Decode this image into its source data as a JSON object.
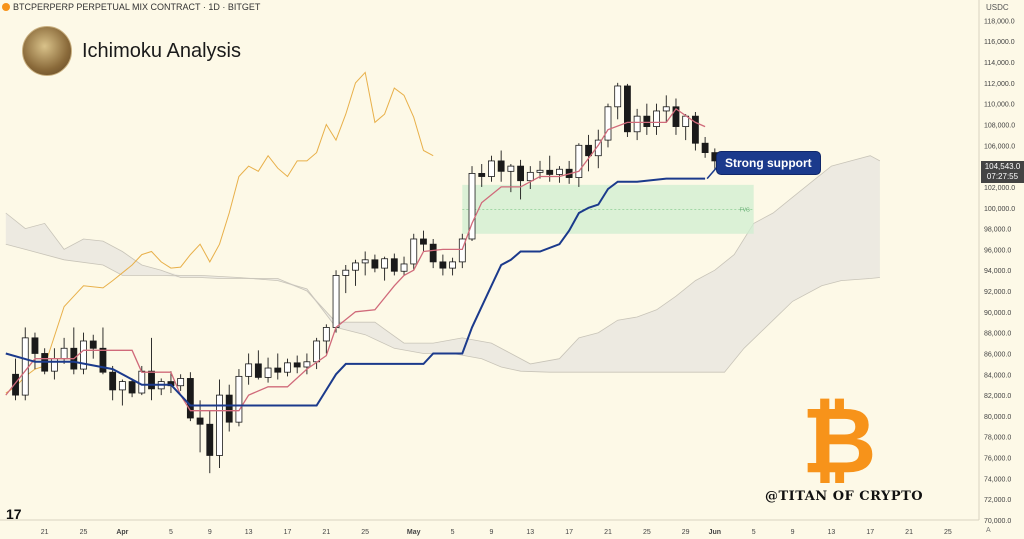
{
  "header": {
    "symbol_line": "BTCPERPERP PERPETUAL MIX CONTRACT · 1D · BITGET"
  },
  "brand": {
    "title": "Ichimoku Analysis"
  },
  "currency": "USDC",
  "annotation": {
    "label": "Strong support",
    "fvg_label": "FVG"
  },
  "price_tag": {
    "price": "104,543.0",
    "countdown": "07:27:55"
  },
  "watermark": "@TITAN OF CRYPTO",
  "logo_text": "17",
  "axis_corner": "A",
  "colors": {
    "background": "#fdf9e7",
    "kijun": "#1b3a8c",
    "tenkan": "#d06a7a",
    "chikou": "#e8b04a",
    "cloud": "#ebe8e0",
    "fvg": "#cfeed0",
    "bitcoin": "#f7931a"
  },
  "chart_data": {
    "type": "candlestick",
    "ylim": [
      70000,
      119000
    ],
    "y_ticks": [
      "118,000.0",
      "116,000.0",
      "114,000.0",
      "112,000.0",
      "110,000.0",
      "108,000.0",
      "106,000.0",
      "104,000.0",
      "102,000.0",
      "100,000.0",
      "98,000.0",
      "96,000.0",
      "94,000.0",
      "92,000.0",
      "90,000.0",
      "88,000.0",
      "86,000.0",
      "84,000.0",
      "82,000.0",
      "80,000.0",
      "78,000.0",
      "76,000.0",
      "74,000.0",
      "72,000.0",
      "70,000.0"
    ],
    "x_ticks": [
      {
        "label": "21",
        "day": -24
      },
      {
        "label": "25",
        "day": -20
      },
      {
        "label": "Apr",
        "day": -16
      },
      {
        "label": "5",
        "day": -11
      },
      {
        "label": "9",
        "day": -7
      },
      {
        "label": "13",
        "day": -3
      },
      {
        "label": "17",
        "day": 1
      },
      {
        "label": "21",
        "day": 5
      },
      {
        "label": "25",
        "day": 9
      },
      {
        "label": "May",
        "day": 14
      },
      {
        "label": "5",
        "day": 18
      },
      {
        "label": "9",
        "day": 22
      },
      {
        "label": "13",
        "day": 26
      },
      {
        "label": "17",
        "day": 30
      },
      {
        "label": "21",
        "day": 34
      },
      {
        "label": "25",
        "day": 38
      },
      {
        "label": "29",
        "day": 42
      },
      {
        "label": "Jun",
        "day": 45
      },
      {
        "label": "5",
        "day": 49
      },
      {
        "label": "9",
        "day": 53
      },
      {
        "label": "13",
        "day": 57
      },
      {
        "label": "17",
        "day": 61
      },
      {
        "label": "21",
        "day": 65
      },
      {
        "label": "25",
        "day": 69
      }
    ],
    "candles": [
      {
        "day": -27,
        "o": 84000,
        "h": 85500,
        "l": 81500,
        "c": 82000
      },
      {
        "day": -26,
        "o": 82000,
        "h": 88500,
        "l": 81500,
        "c": 87500
      },
      {
        "day": -25,
        "o": 87500,
        "h": 88000,
        "l": 84500,
        "c": 86000
      },
      {
        "day": -24,
        "o": 86000,
        "h": 86500,
        "l": 84000,
        "c": 84300
      },
      {
        "day": -23,
        "o": 84300,
        "h": 86500,
        "l": 83500,
        "c": 85500
      },
      {
        "day": -22,
        "o": 85500,
        "h": 87500,
        "l": 85000,
        "c": 86500
      },
      {
        "day": -21,
        "o": 86500,
        "h": 88500,
        "l": 84000,
        "c": 84500
      },
      {
        "day": -20,
        "o": 84500,
        "h": 88000,
        "l": 84000,
        "c": 87200
      },
      {
        "day": -19,
        "o": 87200,
        "h": 87800,
        "l": 85500,
        "c": 86500
      },
      {
        "day": -18,
        "o": 86500,
        "h": 88500,
        "l": 84000,
        "c": 84200
      },
      {
        "day": -17,
        "o": 84200,
        "h": 84800,
        "l": 81500,
        "c": 82500
      },
      {
        "day": -16,
        "o": 82500,
        "h": 83500,
        "l": 81000,
        "c": 83300
      },
      {
        "day": -15,
        "o": 83300,
        "h": 83600,
        "l": 81800,
        "c": 82200
      },
      {
        "day": -14,
        "o": 82200,
        "h": 84800,
        "l": 82000,
        "c": 84300
      },
      {
        "day": -13,
        "o": 84300,
        "h": 87500,
        "l": 81500,
        "c": 82600
      },
      {
        "day": -12,
        "o": 82600,
        "h": 83600,
        "l": 82000,
        "c": 83300
      },
      {
        "day": -11,
        "o": 83300,
        "h": 84300,
        "l": 82200,
        "c": 82900
      },
      {
        "day": -10,
        "o": 82900,
        "h": 84000,
        "l": 82400,
        "c": 83600
      },
      {
        "day": -9,
        "o": 83600,
        "h": 84200,
        "l": 79500,
        "c": 79800
      },
      {
        "day": -8,
        "o": 79800,
        "h": 81500,
        "l": 76500,
        "c": 79200
      },
      {
        "day": -7,
        "o": 79200,
        "h": 80500,
        "l": 74500,
        "c": 76200
      },
      {
        "day": -6,
        "o": 76200,
        "h": 83500,
        "l": 75000,
        "c": 82000
      },
      {
        "day": -5,
        "o": 82000,
        "h": 83000,
        "l": 78500,
        "c": 79400
      },
      {
        "day": -4,
        "o": 79400,
        "h": 84500,
        "l": 79000,
        "c": 83800
      },
      {
        "day": -3,
        "o": 83800,
        "h": 86000,
        "l": 83000,
        "c": 85000
      },
      {
        "day": -2,
        "o": 85000,
        "h": 86300,
        "l": 83500,
        "c": 83700
      },
      {
        "day": -1,
        "o": 83700,
        "h": 85600,
        "l": 83200,
        "c": 84600
      },
      {
        "day": 0,
        "o": 84600,
        "h": 86000,
        "l": 83500,
        "c": 84200
      },
      {
        "day": 1,
        "o": 84200,
        "h": 85500,
        "l": 83800,
        "c": 85100
      },
      {
        "day": 2,
        "o": 85100,
        "h": 85800,
        "l": 84100,
        "c": 84700
      },
      {
        "day": 3,
        "o": 84700,
        "h": 86000,
        "l": 84000,
        "c": 85200
      },
      {
        "day": 4,
        "o": 85200,
        "h": 87500,
        "l": 84500,
        "c": 87200
      },
      {
        "day": 5,
        "o": 87200,
        "h": 88800,
        "l": 86000,
        "c": 88500
      },
      {
        "day": 6,
        "o": 88500,
        "h": 94000,
        "l": 88000,
        "c": 93500
      },
      {
        "day": 7,
        "o": 93500,
        "h": 94500,
        "l": 91800,
        "c": 94000
      },
      {
        "day": 8,
        "o": 94000,
        "h": 95000,
        "l": 92500,
        "c": 94700
      },
      {
        "day": 9,
        "o": 94700,
        "h": 95800,
        "l": 93500,
        "c": 95000
      },
      {
        "day": 10,
        "o": 95000,
        "h": 95500,
        "l": 93800,
        "c": 94200
      },
      {
        "day": 11,
        "o": 94200,
        "h": 95300,
        "l": 93000,
        "c": 95100
      },
      {
        "day": 12,
        "o": 95100,
        "h": 95600,
        "l": 93500,
        "c": 93900
      },
      {
        "day": 13,
        "o": 93900,
        "h": 95300,
        "l": 93500,
        "c": 94600
      },
      {
        "day": 14,
        "o": 94600,
        "h": 97500,
        "l": 94000,
        "c": 97000
      },
      {
        "day": 15,
        "o": 97000,
        "h": 97800,
        "l": 95800,
        "c": 96500
      },
      {
        "day": 16,
        "o": 96500,
        "h": 97000,
        "l": 94200,
        "c": 94800
      },
      {
        "day": 17,
        "o": 94800,
        "h": 95500,
        "l": 93500,
        "c": 94200
      },
      {
        "day": 18,
        "o": 94200,
        "h": 95200,
        "l": 93500,
        "c": 94800
      },
      {
        "day": 19,
        "o": 94800,
        "h": 97500,
        "l": 94200,
        "c": 97000
      },
      {
        "day": 20,
        "o": 97000,
        "h": 104000,
        "l": 96800,
        "c": 103300
      },
      {
        "day": 21,
        "o": 103300,
        "h": 104200,
        "l": 102000,
        "c": 103000
      },
      {
        "day": 22,
        "o": 103000,
        "h": 105000,
        "l": 102500,
        "c": 104500
      },
      {
        "day": 23,
        "o": 104500,
        "h": 105500,
        "l": 102500,
        "c": 103500
      },
      {
        "day": 24,
        "o": 103500,
        "h": 104200,
        "l": 101500,
        "c": 104000
      },
      {
        "day": 25,
        "o": 104000,
        "h": 104600,
        "l": 100800,
        "c": 102600
      },
      {
        "day": 26,
        "o": 102600,
        "h": 104000,
        "l": 101800,
        "c": 103400
      },
      {
        "day": 27,
        "o": 103400,
        "h": 104500,
        "l": 102800,
        "c": 103600
      },
      {
        "day": 28,
        "o": 103600,
        "h": 105000,
        "l": 102500,
        "c": 103200
      },
      {
        "day": 29,
        "o": 103200,
        "h": 104000,
        "l": 102400,
        "c": 103700
      },
      {
        "day": 30,
        "o": 103700,
        "h": 104500,
        "l": 102300,
        "c": 102900
      },
      {
        "day": 31,
        "o": 102900,
        "h": 106200,
        "l": 102000,
        "c": 106000
      },
      {
        "day": 32,
        "o": 106000,
        "h": 107000,
        "l": 103500,
        "c": 105000
      },
      {
        "day": 33,
        "o": 105000,
        "h": 107500,
        "l": 103800,
        "c": 106500
      },
      {
        "day": 34,
        "o": 106500,
        "h": 110000,
        "l": 105800,
        "c": 109700
      },
      {
        "day": 35,
        "o": 109700,
        "h": 112000,
        "l": 108500,
        "c": 111700
      },
      {
        "day": 36,
        "o": 111700,
        "h": 111900,
        "l": 106800,
        "c": 107300
      },
      {
        "day": 37,
        "o": 107300,
        "h": 109500,
        "l": 106500,
        "c": 108800
      },
      {
        "day": 38,
        "o": 108800,
        "h": 110000,
        "l": 107000,
        "c": 107800
      },
      {
        "day": 39,
        "o": 107800,
        "h": 110000,
        "l": 107000,
        "c": 109300
      },
      {
        "day": 40,
        "o": 109300,
        "h": 110800,
        "l": 108200,
        "c": 109700
      },
      {
        "day": 41,
        "o": 109700,
        "h": 110500,
        "l": 107000,
        "c": 107800
      },
      {
        "day": 42,
        "o": 107800,
        "h": 109000,
        "l": 106500,
        "c": 108800
      },
      {
        "day": 43,
        "o": 108800,
        "h": 109200,
        "l": 105500,
        "c": 106200
      },
      {
        "day": 44,
        "o": 106200,
        "h": 106800,
        "l": 104800,
        "c": 105300
      },
      {
        "day": 45,
        "o": 105300,
        "h": 105700,
        "l": 103600,
        "c": 104500
      }
    ],
    "tenkan": [
      [
        -28,
        82000
      ],
      [
        -25,
        85500
      ],
      [
        -21,
        85500
      ],
      [
        -20,
        86300
      ],
      [
        -15,
        86300
      ],
      [
        -14,
        84200
      ],
      [
        -11,
        84200
      ],
      [
        -10,
        82000
      ],
      [
        -9,
        80500
      ],
      [
        -4,
        80500
      ],
      [
        -3,
        82000
      ],
      [
        -1,
        82800
      ],
      [
        1,
        82800
      ],
      [
        3,
        84500
      ],
      [
        5,
        85800
      ],
      [
        6,
        88500
      ],
      [
        8,
        90000
      ],
      [
        10,
        90200
      ],
      [
        12,
        92500
      ],
      [
        13,
        93500
      ],
      [
        14,
        94000
      ],
      [
        15,
        95800
      ],
      [
        17,
        96000
      ],
      [
        19,
        96000
      ],
      [
        20,
        98500
      ],
      [
        21,
        100500
      ],
      [
        23,
        102000
      ],
      [
        25,
        102000
      ],
      [
        27,
        103000
      ],
      [
        29,
        103000
      ],
      [
        31,
        103500
      ],
      [
        33,
        106000
      ],
      [
        34,
        107500
      ],
      [
        36,
        108200
      ],
      [
        40,
        108200
      ],
      [
        41,
        109500
      ],
      [
        43,
        108200
      ],
      [
        44,
        107800
      ]
    ],
    "kijun": [
      [
        -28,
        86000
      ],
      [
        -25,
        85200
      ],
      [
        -21,
        85200
      ],
      [
        -17,
        84500
      ],
      [
        -14,
        83000
      ],
      [
        -11,
        83000
      ],
      [
        -9,
        81000
      ],
      [
        1,
        81000
      ],
      [
        4,
        81000
      ],
      [
        6,
        84000
      ],
      [
        7,
        85000
      ],
      [
        10,
        85000
      ],
      [
        15,
        85000
      ],
      [
        16,
        86000
      ],
      [
        19,
        86000
      ],
      [
        20,
        88500
      ],
      [
        22,
        92500
      ],
      [
        23,
        94500
      ],
      [
        24,
        95000
      ],
      [
        25,
        95800
      ],
      [
        27,
        95800
      ],
      [
        29,
        96500
      ],
      [
        30,
        97800
      ],
      [
        31,
        99500
      ],
      [
        32,
        100000
      ],
      [
        33,
        100300
      ],
      [
        34,
        101800
      ],
      [
        35,
        102500
      ],
      [
        37,
        102500
      ],
      [
        40,
        102800
      ],
      [
        44,
        102800
      ]
    ],
    "chikou": [
      [
        -28,
        82200
      ],
      [
        -27,
        82800
      ],
      [
        -26,
        83800
      ],
      [
        -25,
        84500
      ],
      [
        -24,
        84800
      ],
      [
        -22,
        90500
      ],
      [
        -21,
        91500
      ],
      [
        -20,
        92500
      ],
      [
        -18,
        92300
      ],
      [
        -17,
        93000
      ],
      [
        -15,
        94500
      ],
      [
        -14,
        95500
      ],
      [
        -13,
        95800
      ],
      [
        -12,
        94800
      ],
      [
        -11,
        94200
      ],
      [
        -10,
        94300
      ],
      [
        -9,
        95500
      ],
      [
        -8,
        96500
      ],
      [
        -7,
        94800
      ],
      [
        -6,
        96500
      ],
      [
        -5,
        99500
      ],
      [
        -4,
        103000
      ],
      [
        -3,
        104000
      ],
      [
        -2,
        103500
      ],
      [
        -1,
        105000
      ],
      [
        0,
        103800
      ],
      [
        1,
        103000
      ],
      [
        2,
        104500
      ],
      [
        3,
        104500
      ],
      [
        4,
        105300
      ],
      [
        5,
        108000
      ],
      [
        6,
        106500
      ],
      [
        7,
        109000
      ],
      [
        8,
        112000
      ],
      [
        9,
        113000
      ],
      [
        10,
        108200
      ],
      [
        11,
        109000
      ],
      [
        12,
        111500
      ],
      [
        13,
        110800
      ],
      [
        14,
        108700
      ],
      [
        15,
        105500
      ],
      [
        16,
        105000
      ]
    ],
    "senkou_a": [
      [
        -28,
        99500
      ],
      [
        -26,
        98000
      ],
      [
        -24,
        98500
      ],
      [
        -22,
        96000
      ],
      [
        -20,
        97000
      ],
      [
        -18,
        96800
      ],
      [
        -16,
        95800
      ],
      [
        -14,
        94500
      ],
      [
        -12,
        94000
      ],
      [
        -10,
        93300
      ],
      [
        -8,
        93300
      ],
      [
        -6,
        93200
      ],
      [
        -4,
        93200
      ],
      [
        0,
        93200
      ],
      [
        3,
        92000
      ],
      [
        6,
        89000
      ],
      [
        10,
        89000
      ],
      [
        13,
        87000
      ],
      [
        16,
        87000
      ],
      [
        19,
        87500
      ],
      [
        22,
        87000
      ],
      [
        24,
        86000
      ],
      [
        26,
        85000
      ],
      [
        29,
        85500
      ],
      [
        31,
        87500
      ],
      [
        33,
        88000
      ],
      [
        35,
        89200
      ],
      [
        37,
        89500
      ],
      [
        39,
        90200
      ],
      [
        41,
        91500
      ],
      [
        43,
        93000
      ],
      [
        45,
        94000
      ],
      [
        47,
        95500
      ],
      [
        49,
        98500
      ],
      [
        51,
        99500
      ],
      [
        53,
        101000
      ],
      [
        55,
        102500
      ],
      [
        57,
        104000
      ],
      [
        59,
        104500
      ],
      [
        61,
        105000
      ],
      [
        62,
        104500
      ]
    ],
    "senkou_b": [
      [
        -28,
        96500
      ],
      [
        -26,
        96000
      ],
      [
        -22,
        95000
      ],
      [
        -18,
        94500
      ],
      [
        -16,
        93500
      ],
      [
        -12,
        93500
      ],
      [
        -8,
        93500
      ],
      [
        -4,
        93300
      ],
      [
        0,
        93000
      ],
      [
        3,
        92200
      ],
      [
        6,
        88500
      ],
      [
        9,
        87800
      ],
      [
        12,
        86500
      ],
      [
        15,
        86000
      ],
      [
        18,
        86000
      ],
      [
        21,
        85500
      ],
      [
        23,
        84700
      ],
      [
        25,
        84300
      ],
      [
        28,
        84200
      ],
      [
        31,
        84200
      ],
      [
        34,
        84200
      ],
      [
        37,
        84200
      ],
      [
        40,
        84200
      ],
      [
        43,
        84200
      ],
      [
        46,
        84200
      ],
      [
        48,
        86500
      ],
      [
        51,
        89200
      ],
      [
        53,
        91000
      ],
      [
        56,
        92500
      ],
      [
        58,
        93000
      ],
      [
        61,
        93200
      ],
      [
        62,
        93300
      ]
    ],
    "fvg": {
      "x_start_day": 19,
      "x_end_day": 49,
      "y_low": 97500,
      "y_high": 102200
    }
  }
}
